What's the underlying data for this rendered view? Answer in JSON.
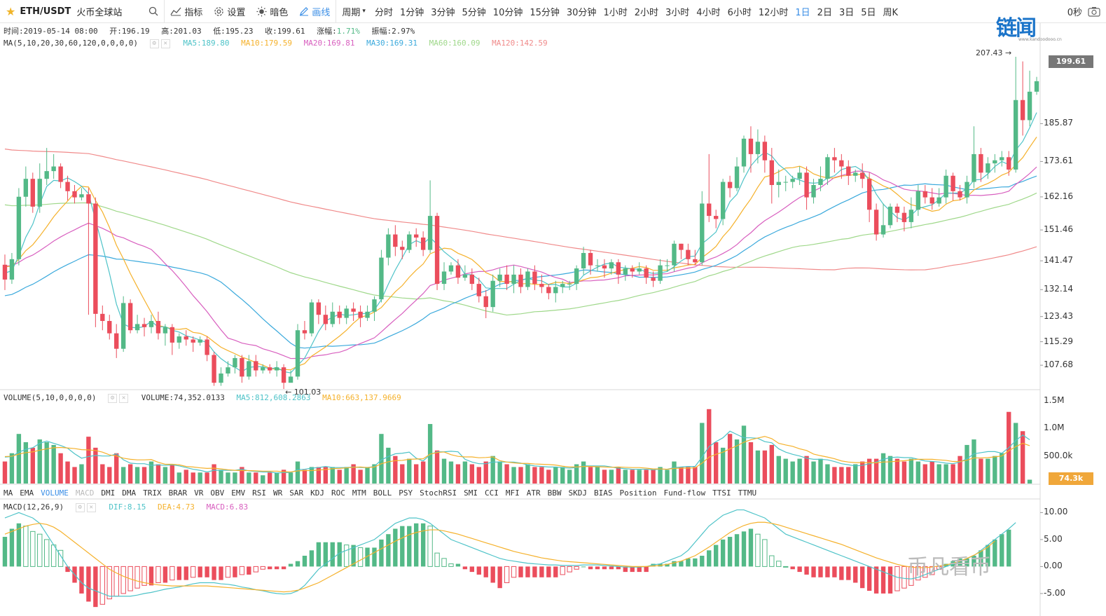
{
  "toolbar": {
    "symbol": "ETH/USDT",
    "exchange": "火币全球站",
    "indicator_label": "指标",
    "settings_label": "设置",
    "theme_label": "暗色",
    "draw_label": "画线",
    "period_label": "周期",
    "periods": [
      "分时",
      "1分钟",
      "3分钟",
      "5分钟",
      "10分钟",
      "15分钟",
      "30分钟",
      "1小时",
      "2小时",
      "3小时",
      "4小时",
      "6小时",
      "12小时",
      "1日",
      "2日",
      "3日",
      "5日",
      "周K"
    ],
    "active_period": "1日",
    "countdown": "0秒"
  },
  "logo": {
    "text": "链闻",
    "sub": "www.kandoodooo.cn"
  },
  "info": {
    "time": "时间:2019-05-14 08:00",
    "open": "开:196.19",
    "high": "高:201.03",
    "low": "低:195.23",
    "close": "收:199.61",
    "change_label": "涨幅:",
    "change": "1.71%",
    "amp": "振幅:2.97%"
  },
  "ma": {
    "label": "MA(5,10,20,30,60,120,0,0,0,0)",
    "ma5": "MA5:189.80",
    "ma10": "MA10:179.59",
    "ma20": "MA20:169.81",
    "ma30": "MA30:169.31",
    "ma60": "MA60:160.09",
    "ma120": "MA120:142.59"
  },
  "vol": {
    "label": "VOLUME(5,10,0,0,0,0)",
    "volume": "VOLUME:74,352.0133",
    "ma5": "MA5:812,608.2863",
    "ma10": "MA10:663,137.9669"
  },
  "macd": {
    "label": "MACD(12,26,9)",
    "dif": "DIF:8.15",
    "dea": "DEA:4.73",
    "macd": "MACD:6.83"
  },
  "indicators": [
    "MA",
    "EMA",
    "VOLUME",
    "MACD",
    "DMI",
    "DMA",
    "TRIX",
    "BRAR",
    "VR",
    "OBV",
    "EMV",
    "RSI",
    "WR",
    "SAR",
    "KDJ",
    "ROC",
    "MTM",
    "BOLL",
    "PSY",
    "StochRSI",
    "SMI",
    "CCI",
    "MFI",
    "ATR",
    "BBW",
    "SKDJ",
    "BIAS",
    "Position",
    "Fund-flow",
    "TTSI",
    "TTMU"
  ],
  "price_axis": [
    "185.87",
    "173.61",
    "162.16",
    "151.46",
    "141.47",
    "132.14",
    "123.43",
    "115.29",
    "107.68"
  ],
  "current_price": "199.61",
  "high_marker": "207.43",
  "low_marker": "101.03",
  "vol_axis": [
    "1.5M",
    "1.0M",
    "500.0k"
  ],
  "current_vol": "74.3k",
  "macd_axis": [
    "10.00",
    "5.00",
    "0.00",
    "-5.00"
  ],
  "watermark": "币凡看币",
  "colors": {
    "up": "#53b987",
    "down": "#eb4d5c",
    "ma5": "#4ec3c8",
    "ma10": "#f5b12b",
    "ma20": "#d85fbf",
    "ma30": "#3aa9dc",
    "ma60": "#9fd88a",
    "ma120": "#f08a8a",
    "accent": "#3a8ee6"
  },
  "chart_data": {
    "type": "candlestick",
    "ylim": [
      100,
      210
    ],
    "candles": [
      [
        140.2,
        135.4,
        143.5,
        132
      ],
      [
        135.4,
        142,
        144,
        134
      ],
      [
        142,
        162.2,
        165,
        140
      ],
      [
        162.2,
        168,
        172,
        159
      ],
      [
        168,
        159,
        170,
        157
      ],
      [
        159,
        168,
        173,
        157
      ],
      [
        168,
        170.5,
        178,
        166
      ],
      [
        170.5,
        172,
        176,
        168
      ],
      [
        172,
        167,
        173,
        165
      ],
      [
        167,
        164,
        169,
        161
      ],
      [
        164,
        162,
        166,
        160
      ],
      [
        162,
        163,
        165,
        161
      ],
      [
        163,
        160,
        165,
        124
      ],
      [
        160,
        124.3,
        162,
        120
      ],
      [
        124.3,
        122,
        127,
        119
      ],
      [
        122,
        118,
        124,
        116
      ],
      [
        118,
        113,
        121,
        110
      ],
      [
        113,
        127.8,
        130,
        112
      ],
      [
        127.8,
        119,
        129,
        118
      ],
      [
        119,
        121,
        124,
        118
      ],
      [
        121,
        120,
        123,
        117
      ],
      [
        120,
        122,
        124,
        118
      ],
      [
        122,
        118,
        125,
        116
      ],
      [
        118,
        120,
        121,
        114
      ],
      [
        120,
        115,
        121,
        111
      ],
      [
        115,
        117,
        118,
        113
      ],
      [
        117,
        116,
        119,
        114
      ],
      [
        116,
        115,
        117,
        112
      ],
      [
        115,
        116,
        117,
        114
      ],
      [
        116,
        111,
        117,
        109
      ],
      [
        111,
        102,
        112,
        101
      ],
      [
        102,
        105,
        107,
        101
      ],
      [
        105,
        107,
        109,
        104
      ],
      [
        107,
        110,
        111,
        105
      ],
      [
        110,
        104,
        111,
        102
      ],
      [
        104,
        109,
        111,
        103
      ],
      [
        109,
        106,
        111,
        104
      ],
      [
        106,
        107,
        108,
        105
      ],
      [
        107,
        106,
        108,
        105
      ],
      [
        106,
        107,
        109,
        104
      ],
      [
        107,
        102,
        108,
        100
      ],
      [
        102,
        104,
        106,
        103
      ],
      [
        104,
        119,
        121,
        103
      ],
      [
        119,
        118,
        122,
        116
      ],
      [
        118,
        128,
        129,
        117
      ],
      [
        128,
        124,
        129,
        121
      ],
      [
        124,
        121,
        127,
        119
      ],
      [
        121,
        125,
        128,
        120
      ],
      [
        125,
        123,
        127,
        121
      ],
      [
        123,
        126,
        127,
        121
      ],
      [
        126,
        125,
        128,
        122
      ],
      [
        125,
        123,
        127,
        120
      ],
      [
        123,
        125,
        127,
        122
      ],
      [
        125,
        129,
        130,
        122
      ],
      [
        129,
        142.5,
        145,
        128
      ],
      [
        142.5,
        150,
        152,
        140
      ],
      [
        150,
        146,
        153,
        143
      ],
      [
        146,
        145,
        148,
        142
      ],
      [
        145,
        150,
        151,
        144
      ],
      [
        150,
        149,
        152,
        146
      ],
      [
        149,
        145,
        151,
        143
      ],
      [
        145,
        156,
        167.5,
        144
      ],
      [
        156,
        134,
        157,
        132
      ],
      [
        134,
        138,
        141,
        132
      ],
      [
        138,
        140,
        141,
        137
      ],
      [
        140,
        136,
        142,
        134
      ],
      [
        136,
        137,
        140,
        135
      ],
      [
        137,
        134,
        139,
        132
      ],
      [
        134,
        130,
        136,
        128
      ],
      [
        130,
        126.5,
        132,
        122.9
      ],
      [
        126.5,
        135,
        137,
        125
      ],
      [
        135,
        137,
        139,
        133
      ],
      [
        137,
        134,
        140,
        132
      ],
      [
        134,
        137,
        140,
        131
      ],
      [
        137,
        133,
        139,
        131
      ],
      [
        133,
        138,
        139,
        132
      ],
      [
        138,
        134,
        140,
        132
      ],
      [
        134,
        133,
        137,
        131
      ],
      [
        133,
        131,
        134,
        129
      ],
      [
        131,
        133,
        135,
        128
      ],
      [
        133,
        134,
        135,
        131
      ],
      [
        134,
        134,
        135,
        132
      ],
      [
        134,
        139,
        140,
        132
      ],
      [
        139,
        144,
        146,
        137
      ],
      [
        144,
        140,
        145,
        137
      ],
      [
        140,
        140,
        142,
        138
      ],
      [
        140,
        139,
        142,
        136
      ],
      [
        139,
        141,
        142,
        137
      ],
      [
        141,
        137,
        142,
        134
      ],
      [
        137,
        139,
        140,
        135
      ],
      [
        139,
        138,
        140,
        136
      ],
      [
        138,
        139,
        141,
        137
      ],
      [
        139,
        136,
        140,
        134
      ],
      [
        136,
        135,
        138,
        133
      ],
      [
        135,
        140,
        142,
        134
      ],
      [
        140,
        140,
        142,
        138
      ],
      [
        140,
        147,
        148,
        138
      ],
      [
        147,
        145,
        147,
        142
      ],
      [
        145,
        142,
        147,
        140
      ],
      [
        142,
        141,
        145,
        140
      ],
      [
        141,
        160,
        164,
        140
      ],
      [
        160,
        156,
        176,
        154
      ],
      [
        156,
        155,
        158,
        152
      ],
      [
        155,
        167,
        168,
        153
      ],
      [
        167,
        165,
        169,
        162
      ],
      [
        165,
        172,
        175,
        164
      ],
      [
        172,
        181,
        182,
        170
      ],
      [
        181,
        176,
        185,
        170
      ],
      [
        176,
        180,
        184,
        173
      ],
      [
        180,
        174,
        182,
        170
      ],
      [
        174,
        166,
        178,
        160
      ],
      [
        166,
        167,
        171,
        162
      ],
      [
        167,
        167,
        169,
        164
      ],
      [
        167,
        168,
        169,
        165
      ],
      [
        168,
        170,
        172,
        166
      ],
      [
        170,
        162,
        172,
        158
      ],
      [
        162,
        166,
        168,
        160
      ],
      [
        166,
        168,
        172,
        164
      ],
      [
        168,
        175,
        176,
        166
      ],
      [
        175,
        174,
        178,
        170
      ],
      [
        174,
        172,
        176,
        168
      ],
      [
        172,
        169,
        174,
        166
      ],
      [
        169,
        170,
        171,
        167
      ],
      [
        170,
        168,
        173,
        165
      ],
      [
        168,
        158,
        170,
        154
      ],
      [
        158,
        150,
        160,
        148
      ],
      [
        150,
        153,
        160,
        149
      ],
      [
        153,
        159,
        160,
        152
      ],
      [
        159,
        157,
        160,
        154
      ],
      [
        157,
        154,
        159,
        151
      ],
      [
        154,
        158,
        162,
        152
      ],
      [
        158,
        164,
        166,
        156
      ],
      [
        164,
        162,
        166,
        160
      ],
      [
        162,
        160,
        165,
        158
      ],
      [
        160,
        162,
        165,
        159
      ],
      [
        162,
        169,
        171,
        160
      ],
      [
        169,
        164,
        170,
        161
      ],
      [
        164,
        162,
        166,
        161
      ],
      [
        162,
        167,
        169,
        160
      ],
      [
        167,
        176,
        185,
        165
      ],
      [
        176,
        170,
        178,
        167
      ],
      [
        170,
        173,
        175,
        168
      ],
      [
        173,
        174,
        176,
        170
      ],
      [
        174,
        175,
        177,
        172
      ],
      [
        175,
        171,
        177,
        169
      ],
      [
        171,
        193.5,
        207.5,
        170
      ],
      [
        193.5,
        187,
        206,
        182
      ],
      [
        187,
        196.2,
        203,
        185
      ],
      [
        196.2,
        199.6,
        201,
        195.2
      ]
    ],
    "volume": [
      0.4,
      0.55,
      0.9,
      0.75,
      0.65,
      0.8,
      0.75,
      0.7,
      0.55,
      0.4,
      0.3,
      0.35,
      0.85,
      0.65,
      0.35,
      0.3,
      0.55,
      0.3,
      0.35,
      0.3,
      0.3,
      0.4,
      0.35,
      0.3,
      0.35,
      0.2,
      0.25,
      0.2,
      0.2,
      0.2,
      0.35,
      0.25,
      0.2,
      0.2,
      0.3,
      0.2,
      0.2,
      0.15,
      0.2,
      0.2,
      0.25,
      0.2,
      0.4,
      0.25,
      0.3,
      0.3,
      0.3,
      0.3,
      0.25,
      0.3,
      0.35,
      0.25,
      0.3,
      0.35,
      0.9,
      0.65,
      0.5,
      0.35,
      0.45,
      0.35,
      0.4,
      1.08,
      0.6,
      0.45,
      0.4,
      0.35,
      0.4,
      0.35,
      0.3,
      0.4,
      0.5,
      0.4,
      0.35,
      0.3,
      0.3,
      0.35,
      0.3,
      0.3,
      0.25,
      0.3,
      0.3,
      0.25,
      0.35,
      0.4,
      0.3,
      0.3,
      0.25,
      0.25,
      0.3,
      0.25,
      0.25,
      0.25,
      0.25,
      0.25,
      0.3,
      0.25,
      0.4,
      0.3,
      0.3,
      0.3,
      1.1,
      1.35,
      0.75,
      0.65,
      0.9,
      0.8,
      1.05,
      0.75,
      0.6,
      0.6,
      0.7,
      0.5,
      0.45,
      0.4,
      0.45,
      0.5,
      0.4,
      0.45,
      0.35,
      0.3,
      0.3,
      0.3,
      0.35,
      0.4,
      0.45,
      0.45,
      0.55,
      0.5,
      0.45,
      0.4,
      0.45,
      0.4,
      0.35,
      0.4,
      0.35,
      0.35,
      0.35,
      0.5,
      0.7,
      0.8,
      0.45,
      0.45,
      0.5,
      0.55,
      1.3,
      1.1,
      0.95,
      0.07
    ],
    "macd_hist": [
      5.5,
      7,
      8,
      7.5,
      6.5,
      6,
      5,
      4,
      3,
      -1,
      -3,
      -5,
      -6.5,
      -7.5,
      -7,
      -6,
      -5.5,
      -5,
      -4.5,
      -4,
      -3.5,
      -3.5,
      -3,
      -3,
      -2.5,
      -2.5,
      -2.5,
      -2,
      -2,
      -2,
      -2.5,
      -2.5,
      -2,
      -2,
      -1.5,
      -1.5,
      -1,
      -0.5,
      -0.5,
      -0.5,
      -0.5,
      0.5,
      1,
      2,
      3,
      4.5,
      4.5,
      4.5,
      4.5,
      4,
      4,
      3.5,
      3.5,
      3.5,
      5,
      6,
      7,
      7.5,
      7.5,
      8,
      8,
      7.5,
      2.5,
      1.5,
      0.5,
      0.5,
      -0.5,
      -1,
      -1.5,
      -2,
      -3,
      -4,
      -3,
      -2,
      -2,
      -2,
      -2,
      -2,
      -2,
      -2,
      -1.5,
      -1,
      -0.5,
      0,
      -0.5,
      -0.5,
      -0.5,
      -0.5,
      -0.5,
      -1,
      -1,
      -1,
      -1,
      0.5,
      0.5,
      0.5,
      1,
      1,
      1.5,
      1.5,
      2,
      3,
      4,
      5,
      5.5,
      6,
      6.5,
      7,
      6,
      5,
      2,
      1,
      0,
      -0.5,
      -1,
      -1.5,
      -2,
      -2,
      -2,
      -2,
      -2.5,
      -2.5,
      -3,
      -4,
      -4.5,
      -5,
      -5,
      -5,
      -4.5,
      -4,
      -3.5,
      -2.5,
      -2,
      -1.5,
      -0.5,
      0.5,
      1,
      1.5,
      1.5,
      2,
      3,
      4,
      5,
      6,
      6.83
    ],
    "macd_dif": [
      9,
      9.5,
      10,
      9.5,
      9,
      8,
      6,
      4,
      2,
      0,
      -1.5,
      -3,
      -4,
      -4.5,
      -5,
      -5.5,
      -5.5,
      -5.5,
      -5.5,
      -5.3,
      -5,
      -4.8,
      -4.5,
      -4.2,
      -4,
      -3.8,
      -3.5,
      -3.2,
      -3,
      -3,
      -3,
      -3.2,
      -3.3,
      -3.5,
      -3.8,
      -4,
      -4.3,
      -4.5,
      -4.8,
      -5,
      -5.1,
      -5,
      -4.5,
      -3.5,
      -2,
      -0.5,
      0.5,
      1.5,
      2.5,
      3,
      3.5,
      4,
      4.5,
      5,
      6,
      7,
      8,
      8.5,
      9,
      9,
      8.7,
      8,
      7,
      6,
      5,
      4.5,
      4,
      3.5,
      3,
      2.5,
      2,
      1.5,
      1.2,
      1,
      0.8,
      0.6,
      0.5,
      0.4,
      0.3,
      0.3,
      0.2,
      0.2,
      0.2,
      0.3,
      0.3,
      0.3,
      0.2,
      0.1,
      0,
      -0.1,
      -0.1,
      -0.1,
      0,
      0.3,
      0.5,
      1,
      1.5,
      2,
      3,
      4.5,
      6,
      7.5,
      8.5,
      9.5,
      10,
      10.5,
      10.5,
      10,
      9.5,
      9,
      8,
      7,
      6,
      5.5,
      5,
      4.5,
      4,
      3.5,
      3,
      2.5,
      2,
      1.5,
      1,
      0.5,
      0,
      -0.5,
      -1,
      -1.5,
      -2,
      -2.2,
      -2.3,
      -2,
      -1.5,
      -1,
      -0.5,
      0,
      0.5,
      1,
      1.5,
      2,
      3,
      4,
      5,
      6,
      7,
      8.15
    ],
    "macd_dea": [
      6,
      6.5,
      7,
      7.5,
      7.8,
      8,
      7.8,
      7.3,
      6.5,
      5.5,
      4.5,
      3.5,
      2.5,
      1.5,
      0.5,
      -0.5,
      -1.2,
      -1.8,
      -2.3,
      -2.7,
      -3,
      -3.2,
      -3.4,
      -3.5,
      -3.6,
      -3.6,
      -3.6,
      -3.6,
      -3.6,
      -3.6,
      -3.7,
      -3.8,
      -3.9,
      -4,
      -4.1,
      -4.2,
      -4.3,
      -4.4,
      -4.5,
      -4.6,
      -4.7,
      -4.6,
      -4.4,
      -4,
      -3.5,
      -3,
      -2.3,
      -1.6,
      -0.9,
      -0.2,
      0.5,
      1.2,
      1.9,
      2.6,
      3.3,
      4,
      4.7,
      5.3,
      5.9,
      6.3,
      6.6,
      6.8,
      6.8,
      6.6,
      6.3,
      6,
      5.6,
      5.2,
      4.8,
      4.4,
      4,
      3.6,
      3.2,
      2.8,
      2.5,
      2.2,
      1.9,
      1.6,
      1.4,
      1.2,
      1,
      0.9,
      0.8,
      0.7,
      0.6,
      0.5,
      0.4,
      0.3,
      0.2,
      0.1,
      0,
      0,
      0,
      0.1,
      0.2,
      0.4,
      0.7,
      1,
      1.5,
      2,
      2.8,
      3.6,
      4.5,
      5.4,
      6.3,
      7,
      7.6,
      8,
      8.2,
      8.2,
      8,
      7.7,
      7.3,
      6.9,
      6.5,
      6.1,
      5.7,
      5.3,
      4.9,
      4.5,
      4.1,
      3.6,
      3.1,
      2.6,
      2.1,
      1.6,
      1.2,
      0.8,
      0.4,
      0.1,
      -0.1,
      -0.2,
      -0.2,
      -0.1,
      0.1,
      0.3,
      0.6,
      1,
      1.5,
      2.1,
      2.8,
      3.6,
      4.73
    ]
  }
}
